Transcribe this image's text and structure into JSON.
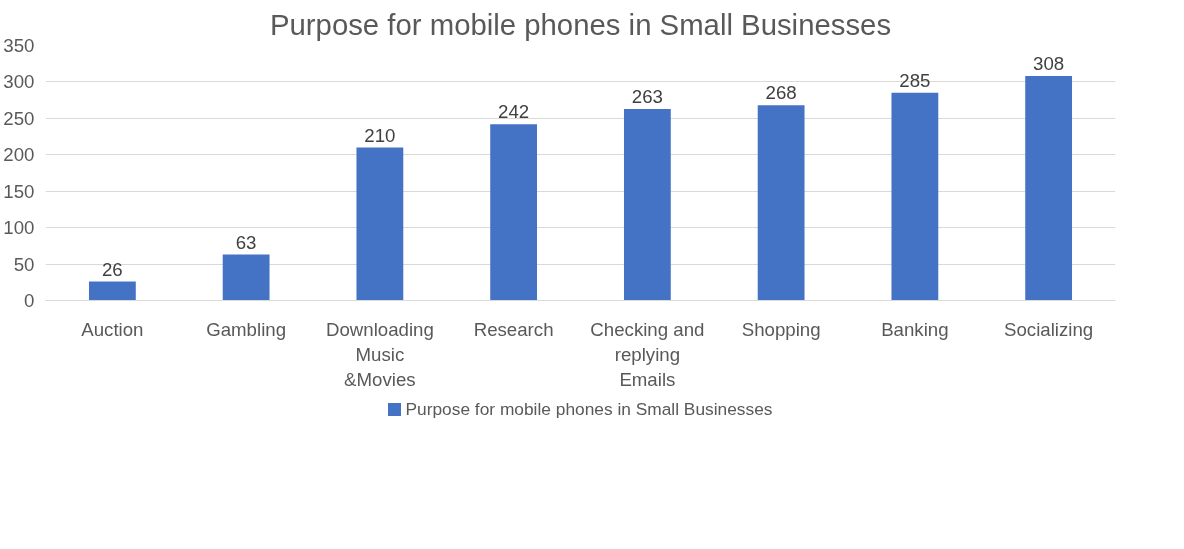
{
  "chart_data": {
    "type": "bar",
    "title": "Purpose for mobile phones in Small Businesses",
    "categories": [
      "Auction",
      "Gambling",
      "Downloading Music &Movies",
      "Research",
      "Checking and replying Emails",
      "Shopping",
      "Banking",
      "Socializing"
    ],
    "series": [
      {
        "name": "Purpose for mobile phones in Small Businesses",
        "color": "#4472c4",
        "values": [
          26,
          63,
          210,
          242,
          263,
          268,
          285,
          308
        ]
      }
    ],
    "ylim": [
      0,
      350
    ],
    "yticks": [
      0,
      50,
      100,
      150,
      200,
      250,
      300,
      350
    ],
    "grid": "y",
    "legend": "bottom",
    "data_labels": true
  }
}
